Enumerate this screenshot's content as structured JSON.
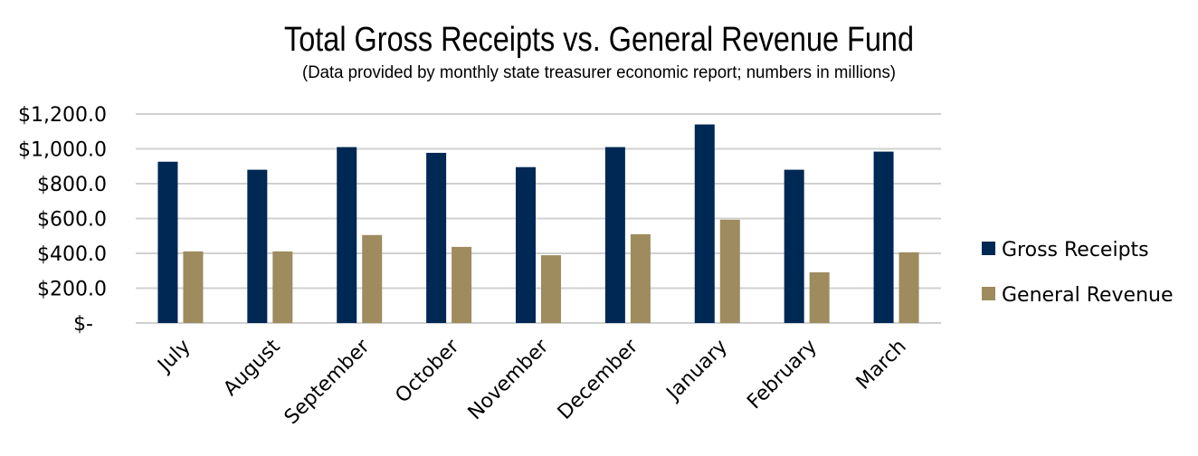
{
  "chart_data": {
    "type": "bar",
    "title": "Total Gross Receipts vs. General Revenue Fund",
    "subtitle": "(Data provided by monthly state treasurer economic report; numbers in millions)",
    "xlabel": "",
    "ylabel": "",
    "categories": [
      "July",
      "August",
      "September",
      "October",
      "November",
      "December",
      "January",
      "February",
      "March"
    ],
    "series": [
      {
        "name": "Gross Receipts",
        "color": "#002855",
        "values": [
          926,
          880,
          1010,
          977,
          895,
          1010,
          1140,
          880,
          984
        ]
      },
      {
        "name": "General Revenue",
        "color": "#9e8b5e",
        "values": [
          411,
          411,
          505,
          437,
          389,
          510,
          593,
          291,
          406
        ]
      }
    ],
    "ylim": [
      0,
      1200
    ],
    "yticks": [
      0,
      200,
      400,
      600,
      800,
      1000,
      1200
    ],
    "ytick_labels": [
      "$-",
      "$200.0",
      "$400.0",
      "$600.0",
      "$800.0",
      "$1,000.0",
      "$1,200.0"
    ],
    "grid": true,
    "legend_position": "right"
  }
}
